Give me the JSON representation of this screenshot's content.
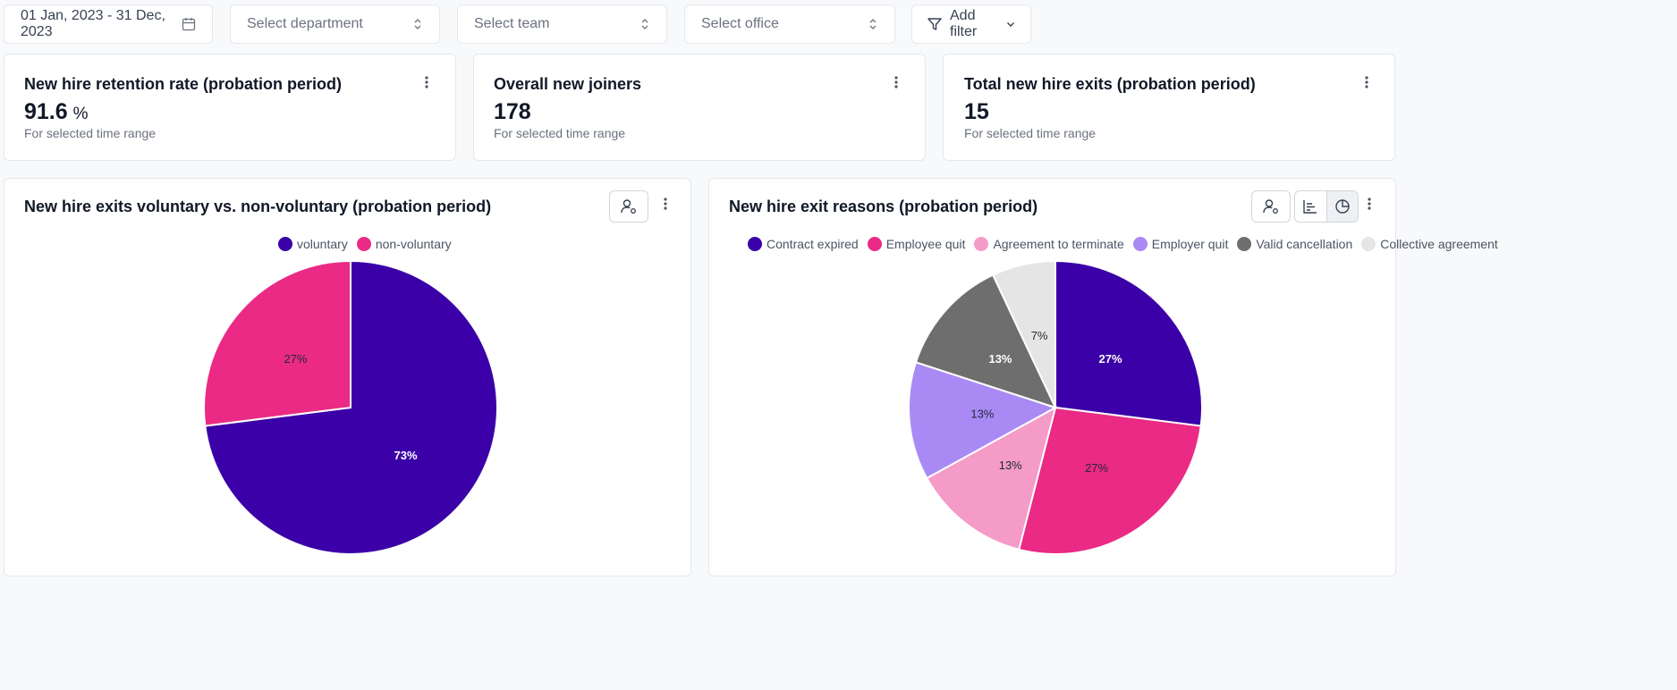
{
  "filters": {
    "date_range": "01 Jan, 2023 - 31 Dec, 2023",
    "department_placeholder": "Select department",
    "team_placeholder": "Select team",
    "office_placeholder": "Select office",
    "add_filter_label": "Add filter"
  },
  "kpis": [
    {
      "title": "New hire retention rate (probation period)",
      "value": "91.6",
      "unit": "%",
      "subtitle": "For selected time range"
    },
    {
      "title": "Overall new joiners",
      "value": "178",
      "subtitle": "For selected time range"
    },
    {
      "title": "Total new hire exits (probation period)",
      "value": "15",
      "subtitle": "For selected time range"
    }
  ],
  "chart_data": [
    {
      "type": "pie",
      "title": "New hire exits voluntary vs. non-voluntary (probation period)",
      "labels": [
        "voluntary",
        "non-voluntary"
      ],
      "values": [
        73,
        27
      ],
      "display_labels": [
        "73%",
        "27%"
      ],
      "colors": [
        "#3b00a8",
        "#ea2a85"
      ],
      "label_colors": [
        "#ffffff",
        "#1f2937"
      ],
      "start_angle_deg": 0,
      "legend_position": "top"
    },
    {
      "type": "pie",
      "title": "New hire exit reasons (probation period)",
      "labels": [
        "Contract expired",
        "Employee quit",
        "Agreement to terminate",
        "Employer quit",
        "Valid cancellation",
        "Collective agreement"
      ],
      "values": [
        27,
        27,
        13,
        13,
        13,
        7
      ],
      "display_labels": [
        "27%",
        "27%",
        "13%",
        "13%",
        "13%",
        "7%"
      ],
      "colors": [
        "#3b00a8",
        "#ea2a85",
        "#f49bc8",
        "#a98af5",
        "#6e6e6e",
        "#e5e5e5"
      ],
      "label_colors": [
        "#ffffff",
        "#1f2937",
        "#1f2937",
        "#1f2937",
        "#ffffff",
        "#1f2937"
      ],
      "start_angle_deg": 0,
      "legend_position": "top"
    }
  ]
}
